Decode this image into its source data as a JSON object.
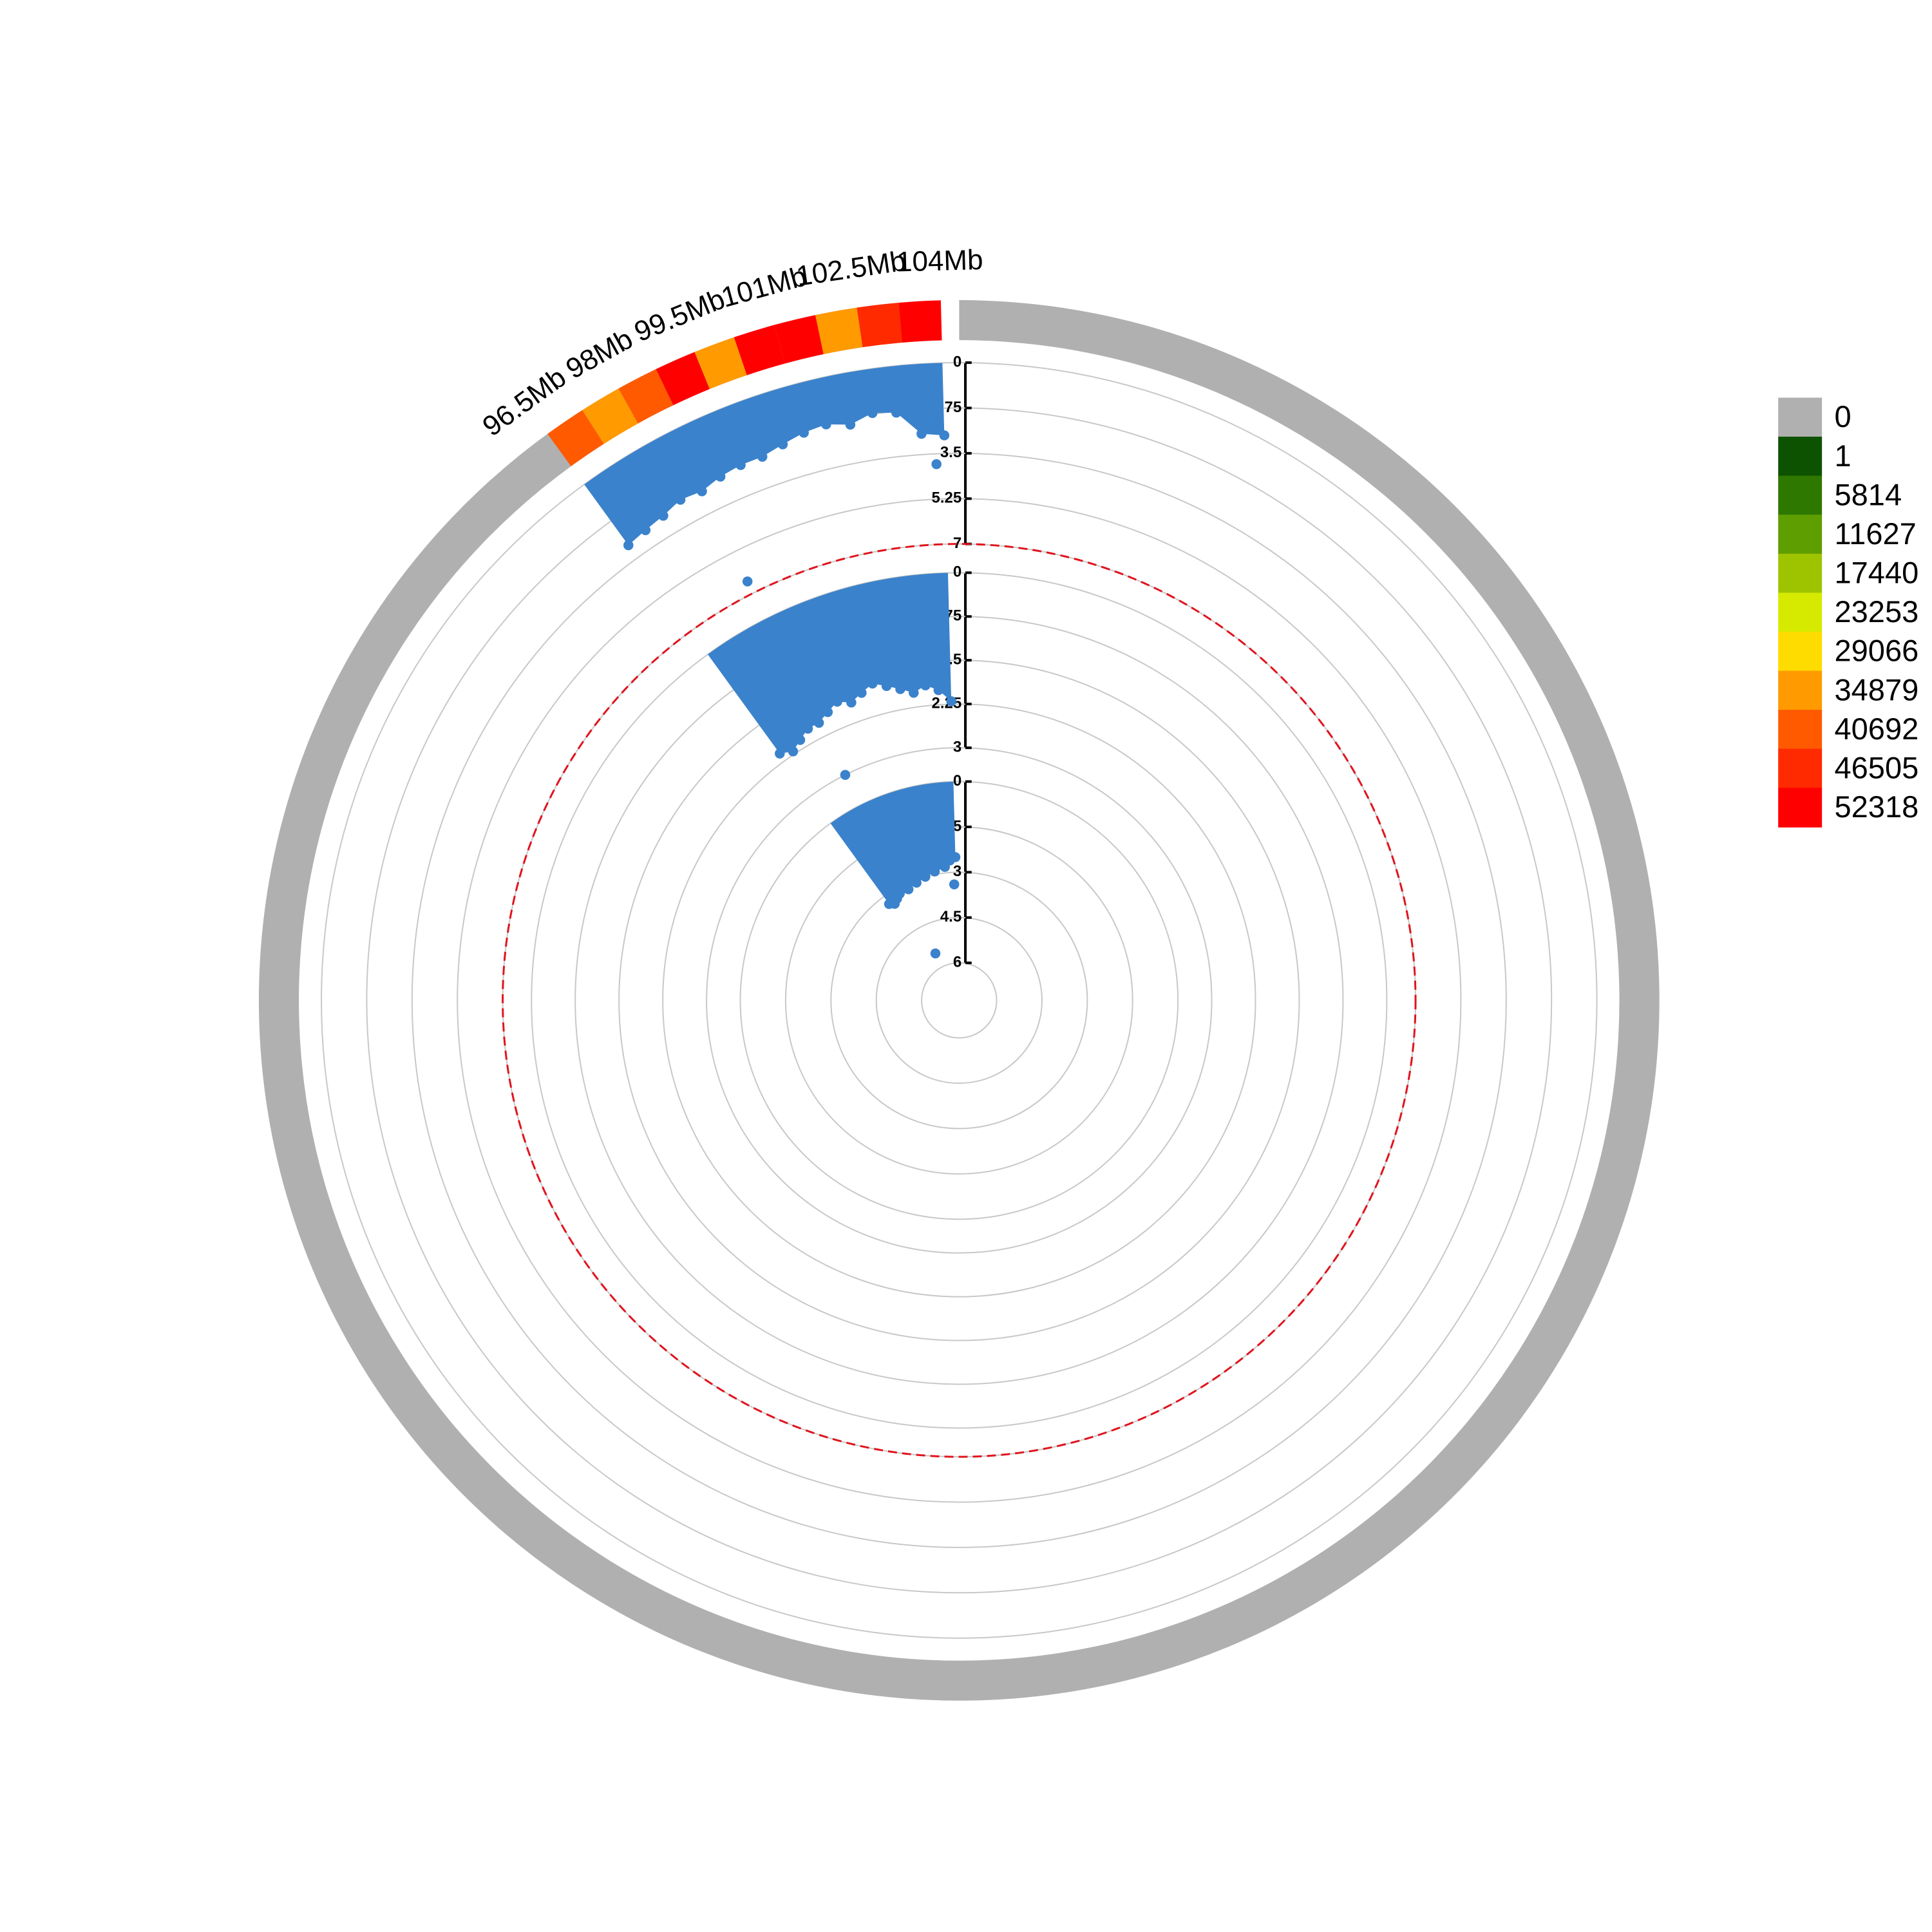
{
  "chart_data": {
    "type": "circular-manhattan",
    "xlim": [
      96.5,
      104
    ],
    "xticks": [
      {
        "value": 96.5,
        "label": "96.5Mb"
      },
      {
        "value": 98,
        "label": "98Mb"
      },
      {
        "value": 99.5,
        "label": "99.5Mb"
      },
      {
        "value": 101,
        "label": "101Mb"
      },
      {
        "value": 102.5,
        "label": "102.5Mb"
      },
      {
        "value": 104,
        "label": "104Mb"
      }
    ],
    "density": {
      "bins": [
        96.5,
        97.25,
        98,
        98.75,
        99.5,
        100.25,
        101,
        101.75,
        102.5,
        103.25,
        104
      ],
      "values": [
        46000,
        36000,
        42000,
        52400,
        35000,
        52400,
        52400,
        35000,
        47000,
        52400
      ]
    },
    "legend": {
      "labels": [
        0,
        1,
        5814,
        11627,
        17440,
        23253,
        29066,
        34879,
        40692,
        46505,
        52318
      ],
      "colors": [
        "#b0b0b0",
        "#0d5200",
        "#2e7800",
        "#5f9e00",
        "#9ec400",
        "#d6ea00",
        "#ffdc00",
        "#ff9a00",
        "#ff5a00",
        "#ff2a00",
        "#ff0000"
      ]
    },
    "threshold": {
      "track": 0,
      "value": 7,
      "color": "#e0141e"
    },
    "tracks": [
      {
        "color": "#3a82cc",
        "ylim": [
          0,
          7
        ],
        "yticks": [
          0,
          1.75,
          3.5,
          5.25,
          7
        ],
        "x": [
          96.5,
          97,
          97.5,
          98,
          98.5,
          99,
          99.5,
          100,
          100.5,
          101,
          101.5,
          102,
          102.5,
          103,
          103.5,
          104
        ],
        "values": [
          2.9,
          2.8,
          2.7,
          2.5,
          2.6,
          2.4,
          2.3,
          2.3,
          2.1,
          1.9,
          1.8,
          2.0,
          1.7,
          1.8,
          2.7,
          2.8
        ],
        "outliers": {
          "x": [
            98.5,
            103.8
          ],
          "values": [
            6.5,
            3.9
          ]
        }
      },
      {
        "color": "#3a82cc",
        "ylim": [
          0,
          3
        ],
        "yticks": [
          0,
          0.75,
          1.5,
          2.25,
          3
        ],
        "x": [
          96.5,
          97,
          97.5,
          98,
          98.5,
          99,
          99.5,
          100,
          100.5,
          101,
          101.5,
          102,
          102.5,
          103,
          103.5,
          104
        ],
        "values": [
          2.1,
          2.2,
          2.1,
          2.0,
          2.0,
          1.9,
          1.8,
          1.9,
          1.8,
          1.7,
          1.8,
          1.9,
          2.0,
          1.9,
          2.0,
          2.2
        ],
        "outliers": {
          "x": [
            98.5
          ],
          "values": [
            3
          ]
        }
      },
      {
        "color": "#3a82cc",
        "ylim": [
          0,
          6
        ],
        "yticks": [
          0,
          1.5,
          3,
          4.5,
          6
        ],
        "x": [
          96.5,
          97,
          97.5,
          98,
          98.5,
          99,
          99.5,
          100,
          100.5,
          101,
          101.5,
          102,
          102.5,
          103,
          103.5,
          104
        ],
        "values": [
          3.3,
          3.4,
          3.3,
          3.2,
          3.1,
          3.2,
          3.0,
          3.1,
          2.9,
          3.0,
          2.8,
          2.9,
          2.7,
          2.8,
          2.6,
          2.5
        ],
        "outliers": {
          "x": [
            98.5,
            103.8
          ],
          "values": [
            5.5,
            3.4
          ]
        }
      }
    ]
  }
}
